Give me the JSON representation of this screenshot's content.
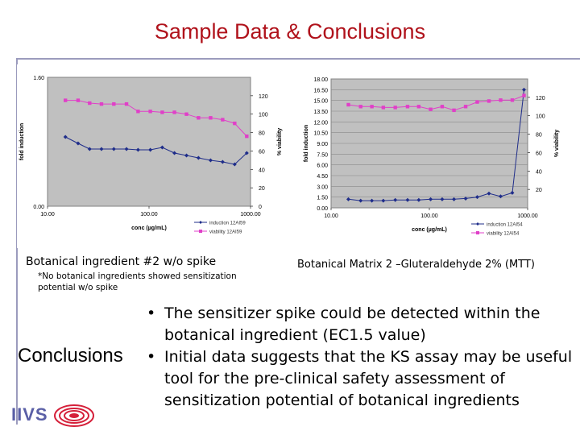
{
  "slide": {
    "title": "Sample Data & Conclusions",
    "caption_left": "Botanical ingredient #2 w/o spike",
    "caption_left_note": "*No botanical ingredients showed sensitization potential w/o spike",
    "caption_right": "Botanical Matrix 2 –Gluteraldehyde 2% (MTT)",
    "conclusions_label": "Conclusions",
    "bullets": [
      "The sensitizer spike could be detected within the botanical ingredient (EC1.5 value)",
      "Initial data suggests that the KS assay may be useful tool for the pre-clinical safety assessment of sensitization potential of botanical ingredients"
    ],
    "logo_text": "IIVS",
    "colors": {
      "title": "#b0121b",
      "induction": "#1f2d8a",
      "viability": "#e040c8",
      "plot_bg": "#c0c0c0"
    }
  },
  "chart_data": [
    {
      "type": "line",
      "xlabel": "conc (µg/mL)",
      "ylabel": "fold induction",
      "y2label": "% viability",
      "x_scale": "log",
      "xlim": [
        10,
        1000
      ],
      "x_ticks": [
        "10.00",
        "100.00",
        "1000.00"
      ],
      "ylim": [
        0,
        1.6
      ],
      "y_ticks": [
        "0.00",
        "1.60"
      ],
      "y2lim": [
        0,
        140
      ],
      "y2_ticks": [
        "0",
        "20",
        "40",
        "60",
        "80",
        "100",
        "120"
      ],
      "legend_position": "bottom-right",
      "series": [
        {
          "name": "induction 12AI59",
          "axis": "left",
          "marker": "diamond",
          "x": [
            15,
            20,
            26,
            34,
            45,
            60,
            78,
            103,
            135,
            178,
            234,
            307,
            404,
            531,
            698,
            918
          ],
          "y": [
            0.86,
            0.78,
            0.71,
            0.71,
            0.71,
            0.71,
            0.7,
            0.7,
            0.73,
            0.66,
            0.63,
            0.6,
            0.57,
            0.55,
            0.52,
            0.66
          ]
        },
        {
          "name": "viability 12AI59",
          "axis": "right",
          "marker": "square",
          "x": [
            15,
            20,
            26,
            34,
            45,
            60,
            78,
            103,
            135,
            178,
            234,
            307,
            404,
            531,
            698,
            918
          ],
          "y": [
            115,
            115,
            112,
            111,
            111,
            111,
            103,
            103,
            102,
            102,
            100,
            96,
            96,
            94,
            90,
            76
          ]
        }
      ]
    },
    {
      "type": "line",
      "xlabel": "conc (µg/mL)",
      "ylabel": "fold induction",
      "y2label": "% viability",
      "x_scale": "log",
      "xlim": [
        10,
        1000
      ],
      "x_ticks": [
        "10.00",
        "100.00",
        "1000.00"
      ],
      "ylim": [
        0,
        18
      ],
      "y_ticks": [
        "0.00",
        "1.50",
        "3.00",
        "4.50",
        "6.00",
        "7.50",
        "9.00",
        "10.50",
        "12.00",
        "13.50",
        "15.00",
        "16.50",
        "18.00"
      ],
      "y2lim": [
        0,
        140
      ],
      "y2_ticks": [
        "20",
        "40",
        "60",
        "80",
        "100",
        "120"
      ],
      "legend_position": "bottom-right",
      "series": [
        {
          "name": "induction 12AI54",
          "axis": "left",
          "marker": "diamond",
          "x": [
            15,
            20,
            26,
            34,
            45,
            60,
            78,
            103,
            135,
            178,
            234,
            307,
            404,
            531,
            698,
            918
          ],
          "y": [
            1.2,
            1.0,
            1.0,
            1.0,
            1.1,
            1.1,
            1.1,
            1.2,
            1.2,
            1.2,
            1.3,
            1.5,
            2.0,
            1.6,
            2.1,
            16.5
          ]
        },
        {
          "name": "viability 12AI54",
          "axis": "right",
          "marker": "square",
          "x": [
            15,
            20,
            26,
            34,
            45,
            60,
            78,
            103,
            135,
            178,
            234,
            307,
            404,
            531,
            698,
            918
          ],
          "y": [
            112,
            110,
            110,
            109,
            109,
            110,
            110,
            107,
            110,
            106,
            110,
            115,
            116,
            117,
            117,
            122
          ]
        }
      ]
    }
  ]
}
